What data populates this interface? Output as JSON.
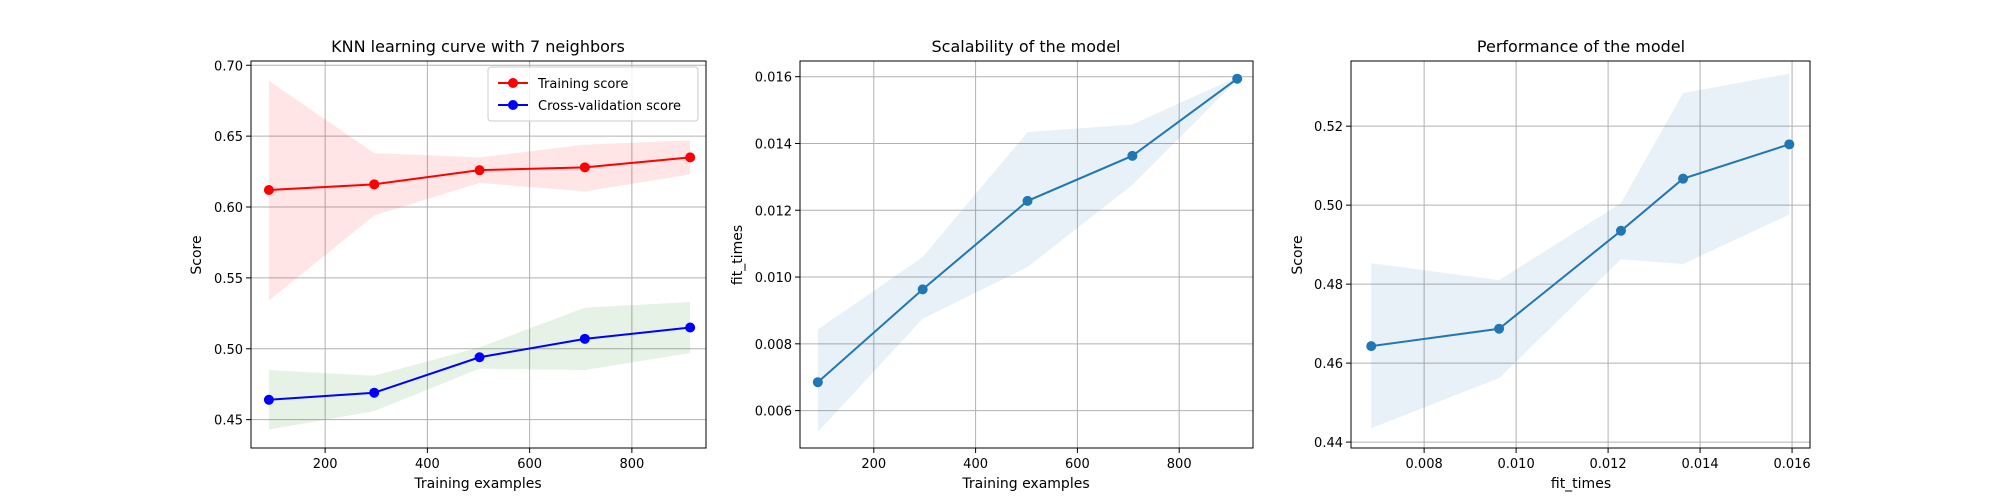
{
  "chart_data": [
    {
      "type": "line",
      "title": "KNN learning curve with 7 neighbors",
      "xlabel": "Training examples",
      "ylabel": "Score",
      "xlim": [
        55,
        945
      ],
      "ylim": [
        0.43,
        0.703
      ],
      "xticks": [
        200,
        400,
        600,
        800
      ],
      "yticks": [
        0.45,
        0.5,
        0.55,
        0.6,
        0.65,
        0.7
      ],
      "xtick_labels": [
        "200",
        "400",
        "600",
        "800"
      ],
      "ytick_labels": [
        "0.45",
        "0.50",
        "0.55",
        "0.60",
        "0.65",
        "0.70"
      ],
      "grid": true,
      "legend_position": "top-right",
      "x": [
        90,
        296,
        502,
        708,
        914
      ],
      "series": [
        {
          "name": "Training score",
          "color": "#ff0000",
          "band_color": "#ff0000",
          "values": [
            0.612,
            0.616,
            0.626,
            0.628,
            0.635
          ],
          "band_lower": [
            0.534,
            0.594,
            0.617,
            0.611,
            0.623
          ],
          "band_upper": [
            0.689,
            0.638,
            0.635,
            0.644,
            0.647
          ]
        },
        {
          "name": "Cross-validation score",
          "color": "#0000ff",
          "band_color": "#008000",
          "values": [
            0.464,
            0.469,
            0.494,
            0.507,
            0.515
          ],
          "band_lower": [
            0.443,
            0.456,
            0.486,
            0.485,
            0.497
          ],
          "band_upper": [
            0.485,
            0.481,
            0.501,
            0.529,
            0.533
          ]
        }
      ]
    },
    {
      "type": "line",
      "title": "Scalability of the model",
      "xlabel": "Training examples",
      "ylabel": "fit_times",
      "xlim": [
        55,
        945
      ],
      "ylim": [
        0.00488,
        0.01647
      ],
      "xticks": [
        200,
        400,
        600,
        800
      ],
      "yticks": [
        0.006,
        0.008,
        0.01,
        0.012,
        0.014,
        0.016
      ],
      "xtick_labels": [
        "200",
        "400",
        "600",
        "800"
      ],
      "ytick_labels": [
        "0.006",
        "0.008",
        "0.010",
        "0.012",
        "0.014",
        "0.016"
      ],
      "grid": true,
      "x": [
        90,
        296,
        502,
        708,
        914
      ],
      "series": [
        {
          "color": "#1f77b4",
          "band_color": "#1f77b4",
          "values": [
            0.00685,
            0.00963,
            0.01228,
            0.01363,
            0.01594
          ],
          "band_lower": [
            0.00536,
            0.00875,
            0.0103,
            0.01276,
            0.0159
          ],
          "band_upper": [
            0.00843,
            0.0106,
            0.01434,
            0.01457,
            0.01599
          ]
        }
      ]
    },
    {
      "type": "line",
      "title": "Performance of the model",
      "xlabel": "fit_times",
      "ylabel": "Score",
      "xlim": [
        0.00641,
        0.01639
      ],
      "ylim": [
        0.4385,
        0.5365
      ],
      "xticks": [
        0.008,
        0.01,
        0.012,
        0.014,
        0.016
      ],
      "yticks": [
        0.44,
        0.46,
        0.48,
        0.5,
        0.52
      ],
      "xtick_labels": [
        "0.008",
        "0.010",
        "0.012",
        "0.014",
        "0.016"
      ],
      "ytick_labels": [
        "0.44",
        "0.46",
        "0.48",
        "0.50",
        "0.52"
      ],
      "grid": true,
      "x": [
        0.00685,
        0.00963,
        0.01228,
        0.01363,
        0.01594
      ],
      "series": [
        {
          "color": "#1f77b4",
          "band_color": "#1f77b4",
          "values": [
            0.4643,
            0.4687,
            0.4935,
            0.5067,
            0.5154
          ],
          "band_lower": [
            0.4435,
            0.4562,
            0.4863,
            0.4851,
            0.4976
          ],
          "band_upper": [
            0.4853,
            0.481,
            0.5005,
            0.5284,
            0.5333
          ]
        }
      ]
    }
  ]
}
